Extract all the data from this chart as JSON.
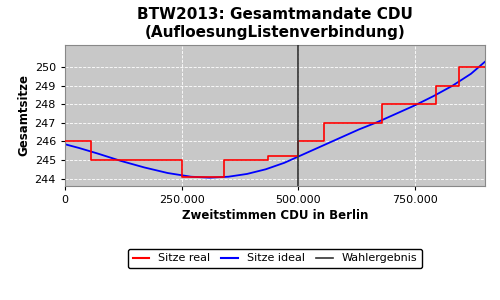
{
  "title_line1": "BTW2013: Gesamtmandate CDU",
  "title_line2": "(AufloesungListenverbindung)",
  "xlabel": "Zweitstimmen CDU in Berlin",
  "ylabel": "Gesamtsitze",
  "xlim": [
    0,
    900000
  ],
  "ylim": [
    243.6,
    251.2
  ],
  "wahlergebnis_x": 500000,
  "background_color": "#c8c8c8",
  "legend_labels": [
    "Sitze real",
    "Sitze ideal",
    "Wahlergebnis"
  ],
  "yticks": [
    244,
    245,
    246,
    247,
    248,
    249,
    250
  ],
  "xticks": [
    0,
    250000,
    500000,
    750000
  ],
  "ideal_x": [
    0,
    30000,
    70000,
    120000,
    170000,
    220000,
    270000,
    310000,
    350000,
    390000,
    430000,
    470000,
    510000,
    550000,
    590000,
    630000,
    670000,
    710000,
    750000,
    790000,
    830000,
    870000,
    900000
  ],
  "ideal_y": [
    245.85,
    245.65,
    245.35,
    244.95,
    244.6,
    244.3,
    244.1,
    244.05,
    244.1,
    244.25,
    244.5,
    244.85,
    245.3,
    245.75,
    246.2,
    246.65,
    247.05,
    247.5,
    247.95,
    248.45,
    249.0,
    249.65,
    250.3
  ],
  "real_x": [
    0,
    55000,
    55000,
    160000,
    160000,
    250000,
    250000,
    340000,
    340000,
    435000,
    435000,
    500000,
    500000,
    555000,
    555000,
    615000,
    615000,
    680000,
    680000,
    735000,
    735000,
    795000,
    795000,
    845000,
    845000,
    900000
  ],
  "real_y": [
    246,
    246,
    245,
    245,
    245,
    245,
    244.1,
    244.1,
    245,
    245,
    245.2,
    245.2,
    246,
    246,
    247,
    247,
    247,
    247,
    248,
    248,
    248,
    248,
    249,
    249,
    250,
    250
  ]
}
